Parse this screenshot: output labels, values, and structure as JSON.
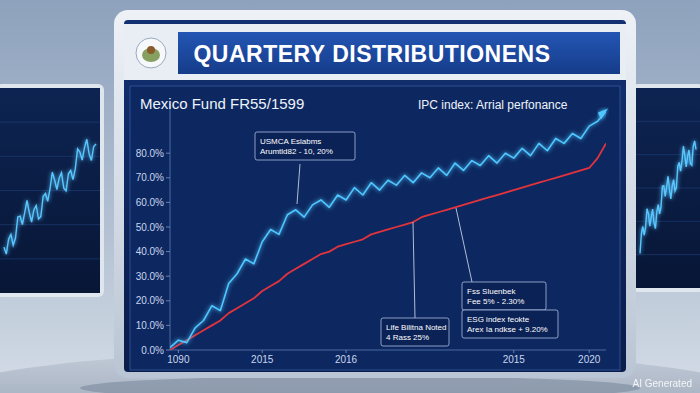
{
  "chart_data": {
    "type": "line",
    "title": "QUARTERY DISTRIBUTIONENS",
    "categories": [
      null,
      "1090",
      null,
      null,
      null,
      null,
      null,
      null,
      null,
      null,
      null,
      "2015",
      null,
      null,
      null,
      null,
      null,
      null,
      null,
      null,
      null,
      "2016",
      null,
      null,
      null,
      null,
      null,
      null,
      null,
      null,
      null,
      null,
      null,
      null,
      null,
      null,
      null,
      null,
      null,
      null,
      null,
      "2015",
      null,
      null,
      null,
      null,
      null,
      null,
      null,
      null,
      "2020",
      null,
      null
    ],
    "series": [
      {
        "name": "Mexico Fund FR55/1599",
        "color": "#4fc6ff",
        "values": [
          1,
          4,
          3,
          9,
          12,
          18,
          16,
          27,
          31,
          37,
          35,
          44,
          49,
          47,
          55,
          57,
          54,
          59,
          61,
          58,
          63,
          61,
          66,
          63,
          68,
          65,
          69,
          67,
          71,
          68,
          72,
          70,
          74,
          71,
          76,
          73,
          77,
          75,
          79,
          76,
          80,
          78,
          82,
          79,
          84,
          81,
          86,
          84,
          88,
          86,
          91,
          93,
          97
        ]
      },
      {
        "name": "IPC index: Arrial perfonance",
        "color": "#e3333c",
        "values": [
          0,
          2,
          4,
          6,
          8,
          10,
          12,
          15,
          17,
          19,
          21,
          24,
          26,
          28,
          31,
          33,
          35,
          37,
          39,
          40,
          42,
          43,
          44,
          45,
          47,
          48,
          49,
          50,
          51,
          52,
          54,
          55,
          56,
          57,
          58,
          59,
          60,
          61,
          62,
          63,
          64,
          65,
          66,
          67,
          68,
          69,
          70,
          71,
          72,
          73,
          74,
          78,
          84
        ]
      }
    ],
    "ylim": [
      0,
      100
    ],
    "yticks": [
      {
        "value": 0,
        "label": "0.0%"
      },
      {
        "value": 10,
        "label": "10.0%"
      },
      {
        "value": 20,
        "label": "20.0%"
      },
      {
        "value": 30,
        "label": "30.0%"
      },
      {
        "value": 40,
        "label": "40.0%"
      },
      {
        "value": 50,
        "label": "50.0%"
      },
      {
        "value": 60,
        "label": "60.0%"
      },
      {
        "value": 70,
        "label": "70.0%"
      },
      {
        "value": 80,
        "label": "80.0%"
      }
    ],
    "grid": false,
    "legend": "top",
    "annotations": [
      {
        "lines": [
          "USMCA Eslabms",
          "Arumtld82 - 10, 20%"
        ]
      },
      {
        "lines": [
          "Fss Sluenbek",
          "Fee 5% - 2.30%"
        ]
      },
      {
        "lines": [
          "ESG index feokte",
          "Arex Ia ndkse + 9.20%"
        ]
      },
      {
        "lines": [
          "Life Bilitna Noted",
          "4 Rass 25%"
        ]
      }
    ],
    "watermark": "AI Generated"
  }
}
